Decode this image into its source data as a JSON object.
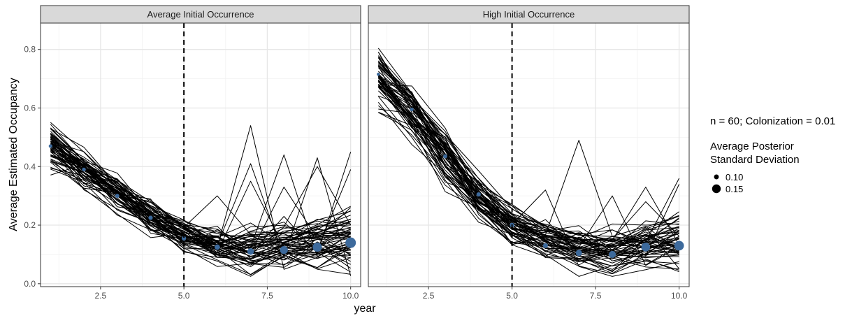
{
  "chart_data": {
    "type": "line",
    "ylabel": "Average Estimated Occupancy",
    "xlabel": "year",
    "xlim": [
      0.7,
      10.3
    ],
    "ylim": [
      -0.01,
      0.89
    ],
    "x_ticks": [
      2.5,
      5.0,
      7.5,
      10.0
    ],
    "x_tick_labels": [
      "2.5",
      "5.0",
      "7.5",
      "10.0"
    ],
    "y_ticks": [
      0.0,
      0.2,
      0.4,
      0.6,
      0.8
    ],
    "y_tick_labels": [
      "0.0",
      "0.2",
      "0.4",
      "0.6",
      "0.8"
    ],
    "vline_x": 5.0,
    "grid": true,
    "legend_position": "right",
    "legend": {
      "caption": "n = 60; Colonization = 0.01",
      "title_line1": "Average Posterior",
      "title_line2": "Standard Deviation",
      "entries": [
        {
          "label": "0.10",
          "value": 0.1
        },
        {
          "label": "0.15",
          "value": 0.15
        }
      ]
    },
    "colors": {
      "lines": "#000000",
      "points": "#3d6a9c",
      "strip": "#d9d9d9",
      "grid": "#ebebeb",
      "vline": "#000000"
    },
    "facets": [
      {
        "label": "Average Initial Occurrence",
        "x": [
          1,
          2,
          3,
          4,
          5,
          6,
          7,
          8,
          9,
          10
        ],
        "mean_trend": [
          0.46,
          0.38,
          0.305,
          0.225,
          0.165,
          0.125,
          0.105,
          0.115,
          0.125,
          0.14
        ],
        "spread": [
          0.05,
          0.045,
          0.04,
          0.04,
          0.035,
          0.04,
          0.045,
          0.05,
          0.055,
          0.06
        ],
        "peaks": [
          {
            "x": 7,
            "y": 0.54
          },
          {
            "x": 7,
            "y": 0.41
          },
          {
            "x": 8,
            "y": 0.44
          },
          {
            "x": 9,
            "y": 0.43
          },
          {
            "x": 10,
            "y": 0.45
          },
          {
            "x": 6,
            "y": 0.3
          },
          {
            "x": 8,
            "y": 0.33
          },
          {
            "x": 9,
            "y": 0.4
          },
          {
            "x": 10,
            "y": 0.39
          },
          {
            "x": 7,
            "y": 0.35
          }
        ],
        "points": [
          {
            "x": 1,
            "y": 0.47,
            "sd": 0.08
          },
          {
            "x": 2,
            "y": 0.39,
            "sd": 0.082
          },
          {
            "x": 3,
            "y": 0.3,
            "sd": 0.085
          },
          {
            "x": 4,
            "y": 0.225,
            "sd": 0.088
          },
          {
            "x": 5,
            "y": 0.155,
            "sd": 0.09
          },
          {
            "x": 6,
            "y": 0.125,
            "sd": 0.1
          },
          {
            "x": 7,
            "y": 0.11,
            "sd": 0.115
          },
          {
            "x": 8,
            "y": 0.115,
            "sd": 0.13
          },
          {
            "x": 9,
            "y": 0.125,
            "sd": 0.145
          },
          {
            "x": 10,
            "y": 0.14,
            "sd": 0.16
          }
        ]
      },
      {
        "label": "High Initial Occurrence",
        "x": [
          1,
          2,
          3,
          4,
          5,
          6,
          7,
          8,
          9,
          10
        ],
        "mean_trend": [
          0.7,
          0.58,
          0.43,
          0.29,
          0.195,
          0.14,
          0.11,
          0.1,
          0.12,
          0.125
        ],
        "spread": [
          0.06,
          0.06,
          0.06,
          0.05,
          0.04,
          0.04,
          0.04,
          0.045,
          0.05,
          0.055
        ],
        "peaks": [
          {
            "x": 7,
            "y": 0.49
          },
          {
            "x": 6,
            "y": 0.32
          },
          {
            "x": 8,
            "y": 0.3
          },
          {
            "x": 9,
            "y": 0.33
          },
          {
            "x": 10,
            "y": 0.36
          },
          {
            "x": 9,
            "y": 0.28
          },
          {
            "x": 10,
            "y": 0.34
          }
        ],
        "points": [
          {
            "x": 1,
            "y": 0.715,
            "sd": 0.075
          },
          {
            "x": 2,
            "y": 0.595,
            "sd": 0.08
          },
          {
            "x": 3,
            "y": 0.435,
            "sd": 0.085
          },
          {
            "x": 4,
            "y": 0.305,
            "sd": 0.088
          },
          {
            "x": 5,
            "y": 0.2,
            "sd": 0.09
          },
          {
            "x": 6,
            "y": 0.13,
            "sd": 0.095
          },
          {
            "x": 7,
            "y": 0.105,
            "sd": 0.11
          },
          {
            "x": 8,
            "y": 0.1,
            "sd": 0.12
          },
          {
            "x": 9,
            "y": 0.125,
            "sd": 0.14
          },
          {
            "x": 10,
            "y": 0.13,
            "sd": 0.15
          }
        ]
      }
    ]
  }
}
